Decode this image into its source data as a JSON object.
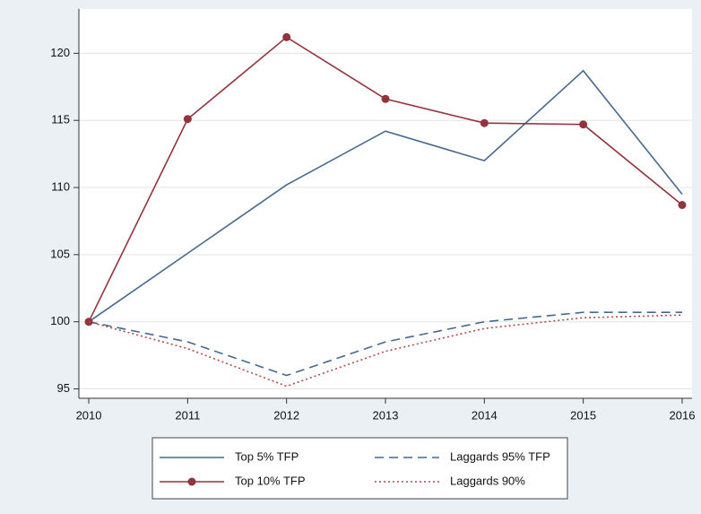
{
  "chart_data": {
    "type": "line",
    "x": [
      2010,
      2011,
      2012,
      2013,
      2014,
      2015,
      2016
    ],
    "xlim": [
      2009.9,
      2016.1
    ],
    "xticks": [
      2010,
      2011,
      2012,
      2013,
      2014,
      2015,
      2016
    ],
    "ylim": [
      94.3,
      123.3
    ],
    "yticks": [
      95,
      100,
      105,
      110,
      115,
      120
    ],
    "grid": true,
    "series": [
      {
        "name": "Top 5% TFP",
        "color": "#46698f",
        "dash": "solid",
        "marker": "none",
        "values": [
          100,
          105.1,
          110.2,
          114.2,
          112.0,
          118.7,
          109.5
        ]
      },
      {
        "name": "Laggards 95% TFP",
        "color": "#46698f",
        "dash": "dashed",
        "marker": "none",
        "values": [
          100,
          98.5,
          96.0,
          98.5,
          100.0,
          100.7,
          100.7
        ]
      },
      {
        "name": "Top 10% TFP",
        "color": "#93333d",
        "dash": "solid",
        "marker": "circle",
        "values": [
          100,
          115.1,
          121.2,
          116.6,
          114.8,
          114.7,
          108.7
        ]
      },
      {
        "name": "Laggards 90%",
        "color": "#b04a48",
        "dash": "dotted",
        "marker": "none",
        "values": [
          100,
          98.0,
          95.2,
          97.8,
          99.5,
          100.3,
          100.5
        ]
      }
    ]
  }
}
